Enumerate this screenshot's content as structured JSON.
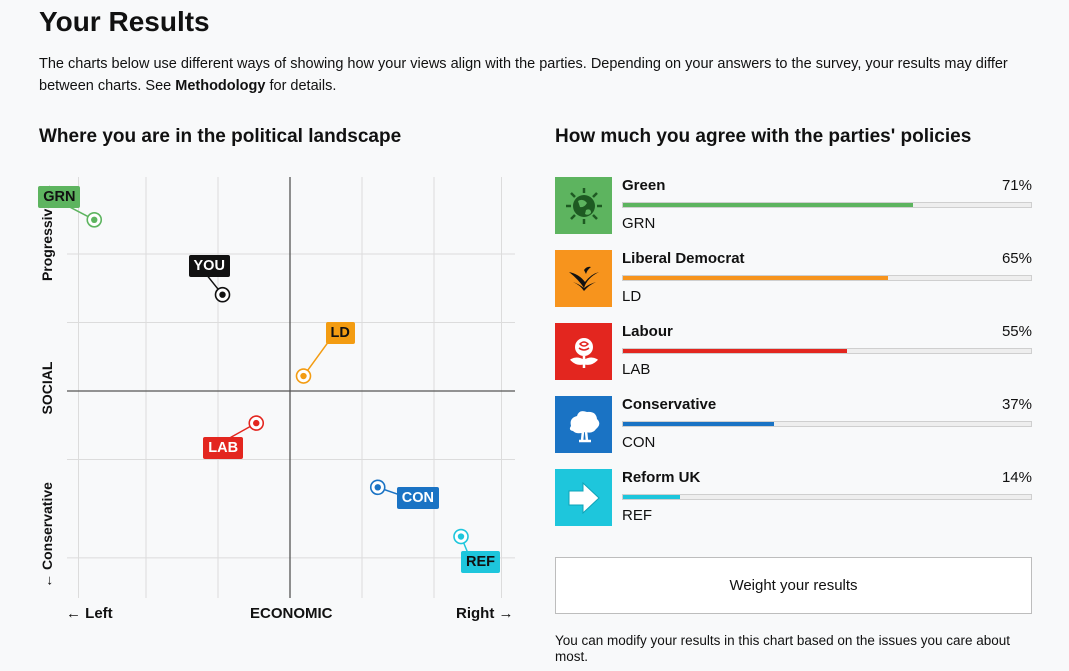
{
  "page": {
    "title": "Your Results",
    "intro_before": "The charts below use different ways of showing how your views align with the parties. Depending on your answers to the survey, your results may differ between charts. See ",
    "intro_link": "Methodology",
    "intro_after": " for details."
  },
  "landscape": {
    "title": "Where you are in the political landscape",
    "x_left": "← Left",
    "x_center": "ECONOMIC",
    "x_right": "Right →",
    "y_top": "Progressive →",
    "y_center": "SOCIAL",
    "y_bottom": "← Conservative",
    "points": [
      {
        "label": "GRN",
        "color": "#5db45f",
        "text_color": "#111111",
        "economic": -0.87,
        "social": 0.8
      },
      {
        "label": "YOU",
        "color": "#111111",
        "text_color": "#ffffff",
        "economic": -0.3,
        "social": 0.45
      },
      {
        "label": "LD",
        "color": "#f39c12",
        "text_color": "#111111",
        "economic": 0.06,
        "social": 0.07
      },
      {
        "label": "LAB",
        "color": "#e3261f",
        "text_color": "#ffffff",
        "economic": -0.15,
        "social": -0.15
      },
      {
        "label": "CON",
        "color": "#1a73c4",
        "text_color": "#ffffff",
        "economic": 0.39,
        "social": -0.45
      },
      {
        "label": "REF",
        "color": "#1ec6dc",
        "text_color": "#111111",
        "economic": 0.76,
        "social": -0.68
      }
    ]
  },
  "agreement": {
    "title": "How much you agree with the parties' policies",
    "parties": [
      {
        "name": "Green",
        "code": "GRN",
        "percent_text": "71%",
        "percent": 71,
        "color": "#5db45f",
        "icon": "globe-icon"
      },
      {
        "name": "Liberal Democrat",
        "code": "LD",
        "percent_text": "65%",
        "percent": 65,
        "color": "#f7941d",
        "icon": "bird-icon"
      },
      {
        "name": "Labour",
        "code": "LAB",
        "percent_text": "55%",
        "percent": 55,
        "color": "#e3261f",
        "icon": "rose-icon"
      },
      {
        "name": "Conservative",
        "code": "CON",
        "percent_text": "37%",
        "percent": 37,
        "color": "#1a73c4",
        "icon": "tree-icon"
      },
      {
        "name": "Reform UK",
        "code": "REF",
        "percent_text": "14%",
        "percent": 14,
        "color": "#1ec6dc",
        "icon": "arrow-icon"
      }
    ],
    "button_label": "Weight your results",
    "note": "You can modify your results in this chart based on the issues you care about most."
  }
}
